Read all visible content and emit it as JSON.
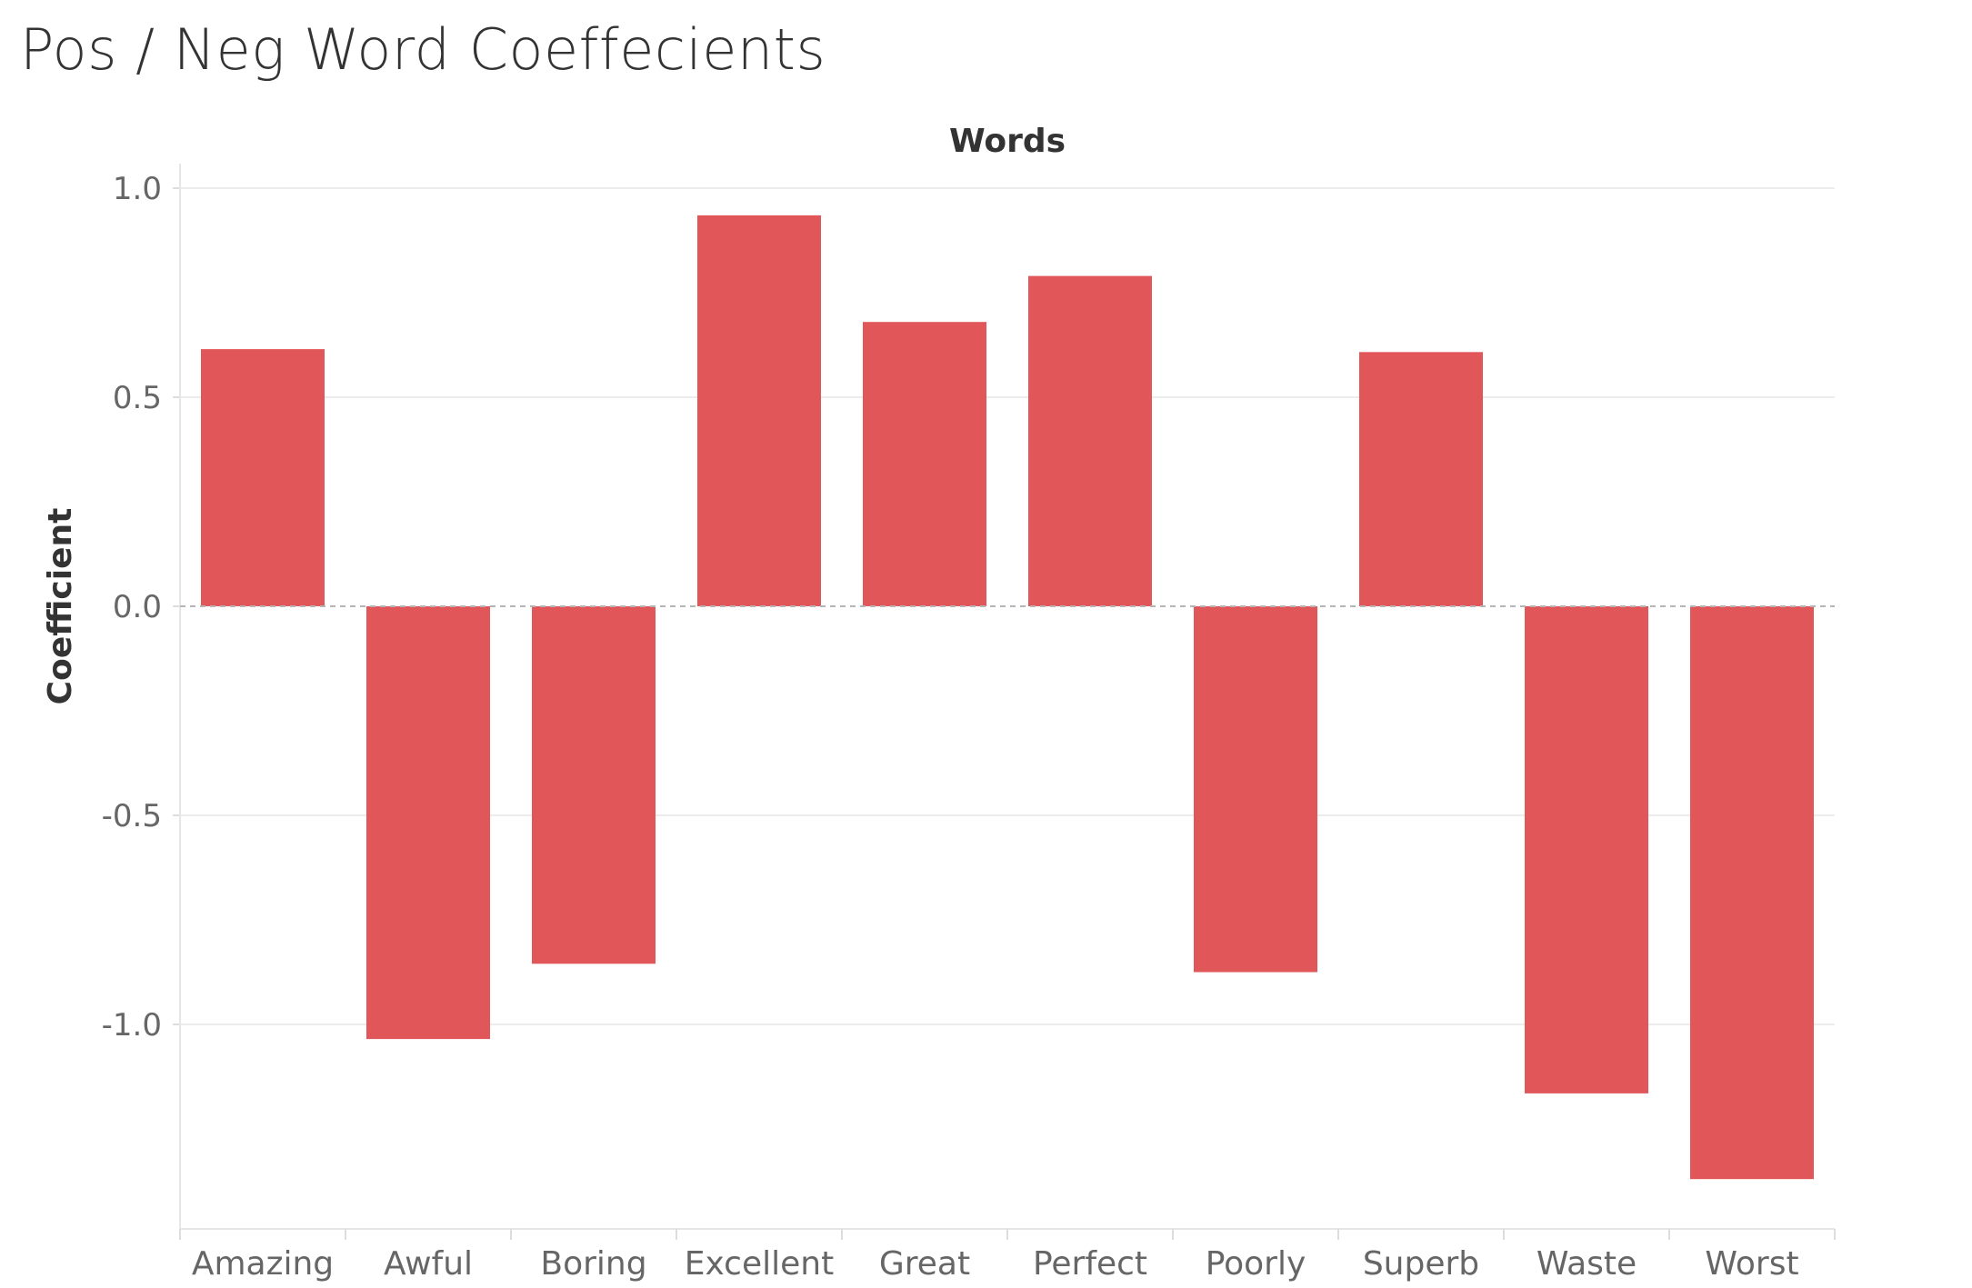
{
  "chart_data": {
    "type": "bar",
    "title": "Pos / Neg Word Coeffecients",
    "xlabel": "Words",
    "ylabel": "Coefficient",
    "categories": [
      "Amazing",
      "Awful",
      "Boring",
      "Excellent",
      "Great",
      "Perfect",
      "Poorly",
      "Superb",
      "Waste",
      "Worst"
    ],
    "values": [
      0.615,
      -1.035,
      -0.855,
      0.935,
      0.68,
      0.79,
      -0.875,
      0.608,
      -1.165,
      -1.37
    ],
    "ylim": [
      -1.49,
      1.05
    ],
    "yticks": [
      1.0,
      0.5,
      0.0,
      -0.5,
      -1.0
    ],
    "ytick_labels": [
      "1.0",
      "0.5",
      "0.0",
      "-0.5",
      "-1.0"
    ],
    "grid": true,
    "zero_line": "dashed",
    "bar_color": "#e15759",
    "legend": "none"
  }
}
